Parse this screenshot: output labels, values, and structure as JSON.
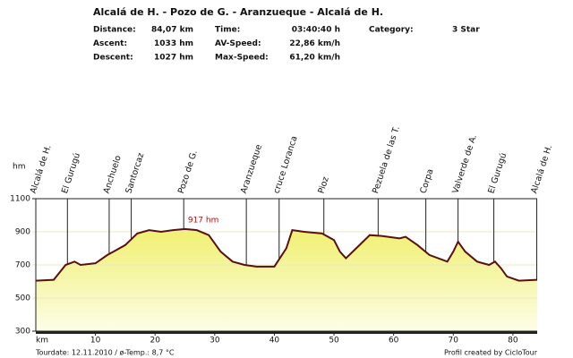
{
  "header": {
    "title": "Alcalá de H. - Pozo de G. - Aranzueque - Alcalá de H.",
    "stats": [
      [
        "Distance:",
        "84,07 km",
        "Time:",
        "03:40:40 h",
        "Category:",
        "3 Star"
      ],
      [
        "Ascent:",
        "1033 hm",
        "AV-Speed:",
        "22,86 km/h"
      ],
      [
        "Descent:",
        "1027 hm",
        "Max-Speed:",
        "61,20 km/h"
      ]
    ]
  },
  "chart_data": {
    "type": "area",
    "x": [
      0,
      3,
      5,
      6.5,
      7.5,
      10,
      12,
      13,
      15,
      17,
      19,
      21,
      23,
      25,
      27,
      29,
      31,
      33,
      35,
      37,
      40,
      42,
      43,
      45,
      48,
      50,
      51,
      52,
      54,
      56,
      58,
      61,
      62,
      64,
      66,
      69,
      70,
      70.8,
      72,
      74,
      76,
      77,
      78,
      79,
      81,
      84.07
    ],
    "values": [
      605,
      610,
      700,
      720,
      700,
      710,
      760,
      780,
      820,
      890,
      910,
      900,
      910,
      917,
      910,
      880,
      780,
      720,
      700,
      690,
      690,
      800,
      910,
      900,
      890,
      850,
      780,
      740,
      810,
      880,
      875,
      860,
      870,
      820,
      760,
      720,
      780,
      840,
      780,
      720,
      700,
      720,
      680,
      630,
      605,
      610
    ],
    "line_color": "#5a1010",
    "fill_color": "#f4f48a",
    "xlim": [
      0,
      84.07
    ],
    "xticks": [
      10,
      20,
      30,
      40,
      50,
      60,
      70,
      80
    ],
    "ylim": [
      300,
      1100
    ],
    "yticks": [
      300,
      500,
      700,
      900,
      1100
    ],
    "xlabel": "km",
    "ylabel": "hm",
    "waypoints": [
      {
        "name": "Alcalá de H.",
        "x": 0
      },
      {
        "name": "El Gurugú",
        "x": 5.3
      },
      {
        "name": "Anchuelo",
        "x": 12.3
      },
      {
        "name": "Santorcaz",
        "x": 16
      },
      {
        "name": "Pozo de G.",
        "x": 24.8
      },
      {
        "name": "Aranzueque",
        "x": 35.3
      },
      {
        "name": "cruce Loranca",
        "x": 40.8
      },
      {
        "name": "Pioz",
        "x": 48.3
      },
      {
        "name": "Pezuela de las T.",
        "x": 57.4
      },
      {
        "name": "Corpa",
        "x": 65.4
      },
      {
        "name": "Valverde de A.",
        "x": 70.8
      },
      {
        "name": "El Gurugú",
        "x": 76.8
      },
      {
        "name": "Alcalá de H.",
        "x": 84
      }
    ],
    "annotation": {
      "text": "917 hm",
      "x": 25.5,
      "y": 917,
      "color": "#b01010"
    }
  },
  "footer": {
    "left": "Tourdate: 12.11.2010  /  ø-Temp.: 8,7 °C",
    "right": "Profil created by CicloTour"
  }
}
